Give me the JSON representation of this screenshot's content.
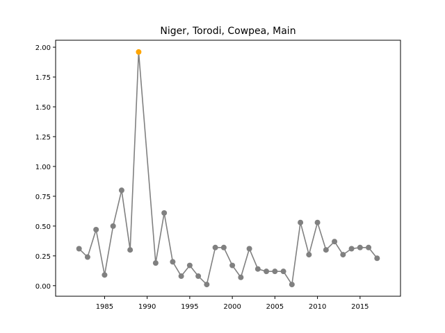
{
  "chart_data": {
    "type": "line",
    "title": "Niger, Torodi, Cowpea, Main",
    "xlabel": "",
    "ylabel": "",
    "xlim": [
      1979.25,
      2019.75
    ],
    "ylim": [
      -0.0885,
      2.0585
    ],
    "x_ticks": [
      1985,
      1990,
      1995,
      2000,
      2005,
      2010,
      2015
    ],
    "y_ticks": [
      0.0,
      0.25,
      0.5,
      0.75,
      1.0,
      1.25,
      1.5,
      1.75,
      2.0
    ],
    "y_tick_labels": [
      "0.00",
      "0.25",
      "0.50",
      "0.75",
      "1.00",
      "1.25",
      "1.50",
      "1.75",
      "2.00"
    ],
    "grid": false,
    "line_color": "#808080",
    "marker_color": "#808080",
    "highlight_color": "#ffa500",
    "highlight_year": 1989,
    "series": [
      {
        "x": [
          1982,
          1983,
          1984,
          1985,
          1986,
          1987,
          1988,
          1989,
          1991,
          1992,
          1993,
          1994,
          1995,
          1996,
          1997,
          1998,
          1999,
          2000,
          2001,
          2002,
          2003,
          2004,
          2005,
          2006,
          2007,
          2008,
          2009,
          2010,
          2011,
          2012,
          2013,
          2014,
          2015,
          2016,
          2017
        ],
        "values": [
          0.31,
          0.24,
          0.47,
          0.09,
          0.5,
          0.8,
          0.3,
          1.96,
          0.19,
          0.61,
          0.2,
          0.08,
          0.17,
          0.08,
          0.01,
          0.32,
          0.32,
          0.17,
          0.07,
          0.31,
          0.14,
          0.12,
          0.12,
          0.12,
          0.01,
          0.53,
          0.26,
          0.53,
          0.3,
          0.37,
          0.26,
          0.31,
          0.32,
          0.32,
          0.23
        ]
      }
    ]
  }
}
